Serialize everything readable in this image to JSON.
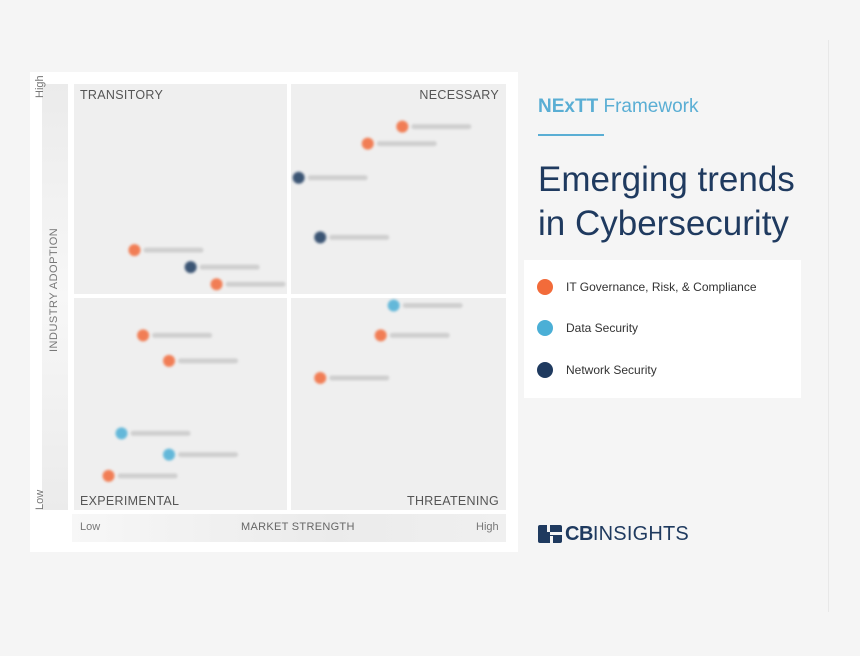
{
  "framework": {
    "bold": "NExTT",
    "rest": " Framework"
  },
  "headline": "Emerging trends in Cybersecurity",
  "brand": {
    "cb": "CB",
    "insights": "INSIGHTS"
  },
  "legend": [
    {
      "label": "IT Governance, Risk, & Compliance",
      "color": "#f26b3a"
    },
    {
      "label": "Data Security",
      "color": "#4bafd6"
    },
    {
      "label": "Network Security",
      "color": "#1f3a5f"
    }
  ],
  "chart_data": {
    "type": "scatter",
    "title": "",
    "xlabel": "MARKET STRENGTH",
    "ylabel": "INDUSTRY ADOPTION",
    "x_ticks": {
      "low": "Low",
      "high": "High"
    },
    "y_ticks": {
      "low": "Low",
      "high": "High"
    },
    "xlim": [
      0,
      100
    ],
    "ylim": [
      0,
      100
    ],
    "quadrants": {
      "top_left": "TRANSITORY",
      "top_right": "NECESSARY",
      "bottom_left": "EXPERIMENTAL",
      "bottom_right": "THREATENING"
    },
    "series": [
      {
        "name": "IT Governance, Risk, & Compliance",
        "color": "#f26b3a",
        "points": [
          {
            "x": 76,
            "y": 90
          },
          {
            "x": 68,
            "y": 86
          },
          {
            "x": 14,
            "y": 61
          },
          {
            "x": 33,
            "y": 53
          },
          {
            "x": 71,
            "y": 41
          },
          {
            "x": 57,
            "y": 31
          },
          {
            "x": 16,
            "y": 41
          },
          {
            "x": 22,
            "y": 35
          },
          {
            "x": 8,
            "y": 8
          }
        ]
      },
      {
        "name": "Data Security",
        "color": "#4bafd6",
        "points": [
          {
            "x": 74,
            "y": 48
          },
          {
            "x": 11,
            "y": 18
          },
          {
            "x": 22,
            "y": 13
          }
        ]
      },
      {
        "name": "Network Security",
        "color": "#1f3a5f",
        "points": [
          {
            "x": 52,
            "y": 78
          },
          {
            "x": 57,
            "y": 64
          },
          {
            "x": 27,
            "y": 57
          }
        ]
      }
    ]
  }
}
